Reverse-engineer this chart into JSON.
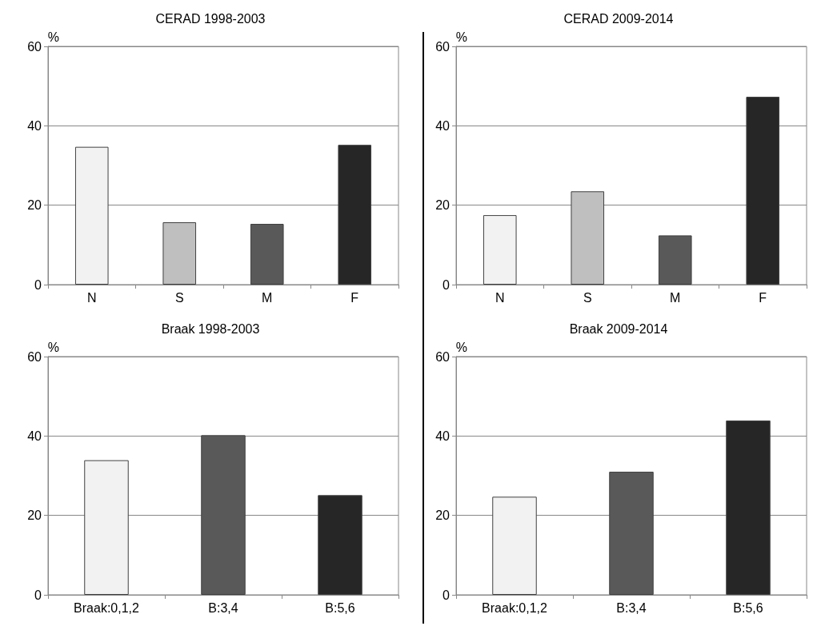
{
  "chart_data": [
    {
      "type": "bar",
      "title": "CERAD 1998-2003",
      "ylabel": "%",
      "categories": [
        "N",
        "S",
        "M",
        "F"
      ],
      "values": [
        34.7,
        15.7,
        15.3,
        35.2
      ],
      "colors": [
        "#f2f2f2",
        "#bfbfbf",
        "#595959",
        "#262626"
      ],
      "ylim": [
        0,
        60
      ],
      "yticks": [
        0,
        20,
        40,
        60
      ],
      "grid": "y"
    },
    {
      "type": "bar",
      "title": "CERAD 2009-2014",
      "ylabel": "%",
      "categories": [
        "N",
        "S",
        "M",
        "F"
      ],
      "values": [
        17.5,
        23.5,
        12.4,
        47.3
      ],
      "colors": [
        "#f2f2f2",
        "#bfbfbf",
        "#595959",
        "#262626"
      ],
      "ylim": [
        0,
        60
      ],
      "yticks": [
        0,
        20,
        40,
        60
      ],
      "grid": "y"
    },
    {
      "type": "bar",
      "title": "Braak 1998-2003",
      "ylabel": "%",
      "categories": [
        "Braak:0,1,2",
        "B:3,4",
        "B:5,6"
      ],
      "values": [
        33.9,
        40.2,
        25.1
      ],
      "colors": [
        "#f2f2f2",
        "#595959",
        "#262626"
      ],
      "ylim": [
        0,
        60
      ],
      "yticks": [
        0,
        20,
        40,
        60
      ],
      "grid": "y"
    },
    {
      "type": "bar",
      "title": "Braak 2009-2014",
      "ylabel": "%",
      "categories": [
        "Braak:0,1,2",
        "B:3,4",
        "B:5,6"
      ],
      "values": [
        24.7,
        31.0,
        43.9
      ],
      "colors": [
        "#f2f2f2",
        "#595959",
        "#262626"
      ],
      "ylim": [
        0,
        60
      ],
      "yticks": [
        0,
        20,
        40,
        60
      ],
      "grid": "y"
    }
  ]
}
